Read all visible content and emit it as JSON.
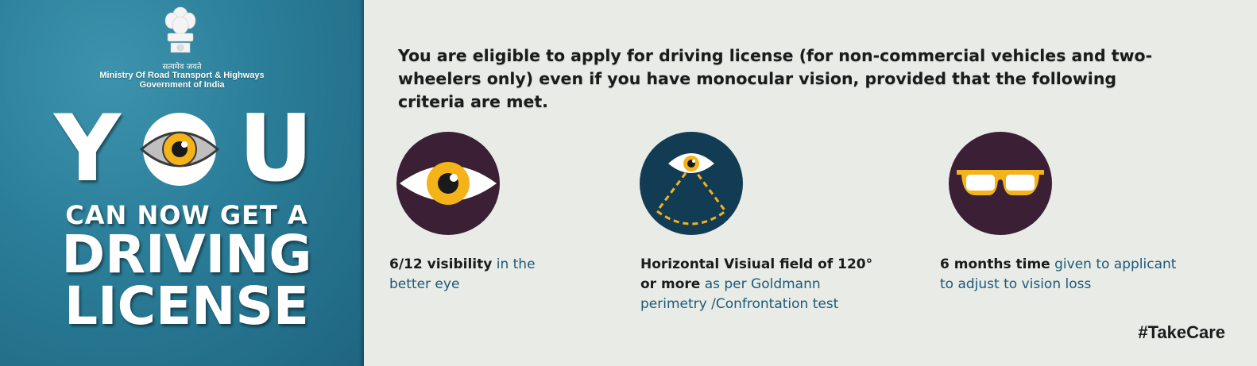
{
  "left_panel": {
    "emblem_motto": "सत्यमेव जयते",
    "ministry_line1": "Ministry Of Road Transport & Highways",
    "ministry_line2": "Government of India",
    "title_you_letter1": "Y",
    "title_you_letter3": "U",
    "title_line2": "CAN NOW GET A",
    "title_line3": "DRIVING",
    "title_line4": "LICENSE"
  },
  "headline": "You are eligible to apply for driving license (for non-commercial vehicles and two-wheelers only) even if you have monocular vision, provided that the following criteria are met.",
  "criteria": [
    {
      "icon": "eye-icon",
      "bold": "6/12 visibility",
      "rest": " in the better eye"
    },
    {
      "icon": "visual-field-icon",
      "bold": "Horizontal Visiual field of 120° or more",
      "rest": " as per Goldmann perimetry /Confrontation test"
    },
    {
      "icon": "glasses-icon",
      "bold": "6 months time",
      "rest": " given to applicant to adjust to vision loss"
    }
  ],
  "hashtag": "#TakeCare",
  "colors": {
    "panel_blue": "#2a7d98",
    "circle_purple": "#3a1f35",
    "circle_navy": "#123c54",
    "accent_yellow": "#f5b31a",
    "text_teal": "#1a5a7a"
  }
}
